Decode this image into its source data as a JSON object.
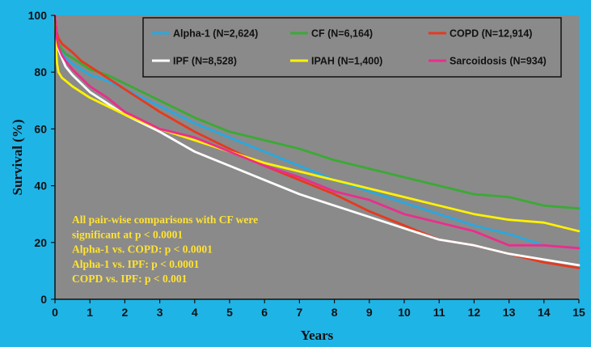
{
  "chart_data": {
    "type": "line",
    "title": "",
    "xlabel": "Years",
    "ylabel": "Survival (%)",
    "xlim": [
      0,
      15
    ],
    "ylim": [
      0,
      100
    ],
    "xticks": [
      0,
      1,
      2,
      3,
      4,
      5,
      6,
      7,
      8,
      9,
      10,
      11,
      12,
      13,
      14,
      15
    ],
    "yticks": [
      0,
      20,
      40,
      60,
      80,
      100
    ],
    "grid": false,
    "legend_position": "top",
    "background_color": "#1fb4e6",
    "plot_background_color": "#8a8a8a",
    "series": [
      {
        "name": "Alpha-1 (N=2,624)",
        "color": "#27a9e1",
        "points": [
          [
            0,
            100
          ],
          [
            0.05,
            92
          ],
          [
            0.1,
            89
          ],
          [
            0.2,
            87
          ],
          [
            0.3,
            85
          ],
          [
            0.5,
            83
          ],
          [
            0.75,
            81
          ],
          [
            1,
            79
          ],
          [
            1.5,
            77
          ],
          [
            2,
            74
          ],
          [
            3,
            68
          ],
          [
            4,
            62
          ],
          [
            5,
            57
          ],
          [
            6,
            52
          ],
          [
            7,
            47
          ],
          [
            8,
            42
          ],
          [
            9,
            38
          ],
          [
            10,
            34
          ],
          [
            11,
            30
          ],
          [
            12,
            26
          ],
          [
            13,
            23
          ],
          [
            14,
            19
          ],
          [
            15,
            18
          ]
        ]
      },
      {
        "name": "CF (N=6,164)",
        "color": "#3aaa35",
        "points": [
          [
            0,
            100
          ],
          [
            0.05,
            93
          ],
          [
            0.1,
            90
          ],
          [
            0.2,
            88
          ],
          [
            0.3,
            86.5
          ],
          [
            0.5,
            85
          ],
          [
            0.75,
            83
          ],
          [
            1,
            81
          ],
          [
            1.5,
            79
          ],
          [
            2,
            76
          ],
          [
            3,
            70
          ],
          [
            4,
            64
          ],
          [
            5,
            59
          ],
          [
            6,
            56
          ],
          [
            7,
            53
          ],
          [
            8,
            49
          ],
          [
            9,
            46
          ],
          [
            10,
            43
          ],
          [
            11,
            40
          ],
          [
            12,
            37
          ],
          [
            13,
            36
          ],
          [
            14,
            33
          ],
          [
            15,
            32
          ]
        ]
      },
      {
        "name": "COPD (N=12,914)",
        "color": "#e8391d",
        "points": [
          [
            0,
            100
          ],
          [
            0.05,
            94
          ],
          [
            0.1,
            92
          ],
          [
            0.2,
            90
          ],
          [
            0.3,
            89
          ],
          [
            0.5,
            87
          ],
          [
            0.75,
            84
          ],
          [
            1,
            82
          ],
          [
            1.5,
            78
          ],
          [
            2,
            74
          ],
          [
            3,
            66
          ],
          [
            4,
            59
          ],
          [
            5,
            53
          ],
          [
            6,
            47
          ],
          [
            7,
            42
          ],
          [
            8,
            37
          ],
          [
            9,
            31
          ],
          [
            10,
            26
          ],
          [
            11,
            21
          ],
          [
            12,
            19
          ],
          [
            13,
            16
          ],
          [
            14,
            13
          ],
          [
            15,
            11
          ]
        ]
      },
      {
        "name": "IPF (N=8,528)",
        "color": "#ffffff",
        "points": [
          [
            0,
            100
          ],
          [
            0.05,
            91
          ],
          [
            0.1,
            88
          ],
          [
            0.2,
            85
          ],
          [
            0.3,
            82
          ],
          [
            0.5,
            79
          ],
          [
            0.75,
            76
          ],
          [
            1,
            73
          ],
          [
            1.5,
            69
          ],
          [
            2,
            65
          ],
          [
            3,
            59
          ],
          [
            4,
            52
          ],
          [
            5,
            47
          ],
          [
            6,
            42
          ],
          [
            7,
            37
          ],
          [
            8,
            33
          ],
          [
            9,
            29
          ],
          [
            10,
            25
          ],
          [
            11,
            21
          ],
          [
            12,
            19
          ],
          [
            13,
            16
          ],
          [
            14,
            14
          ],
          [
            15,
            12
          ]
        ]
      },
      {
        "name": "IPAH (N=1,400)",
        "color": "#fff200",
        "points": [
          [
            0,
            100
          ],
          [
            0.03,
            88
          ],
          [
            0.06,
            83
          ],
          [
            0.1,
            80
          ],
          [
            0.2,
            78
          ],
          [
            0.3,
            77
          ],
          [
            0.5,
            75
          ],
          [
            0.75,
            73
          ],
          [
            1,
            71
          ],
          [
            1.5,
            68
          ],
          [
            2,
            65
          ],
          [
            3,
            60
          ],
          [
            4,
            56
          ],
          [
            5,
            52
          ],
          [
            6,
            48
          ],
          [
            7,
            45
          ],
          [
            8,
            42
          ],
          [
            9,
            39
          ],
          [
            10,
            36
          ],
          [
            11,
            33
          ],
          [
            12,
            30
          ],
          [
            13,
            28
          ],
          [
            14,
            27
          ],
          [
            15,
            24
          ]
        ]
      },
      {
        "name": "Sarcoidosis (N=934)",
        "color": "#ec2d8c",
        "points": [
          [
            0,
            100
          ],
          [
            0.05,
            92
          ],
          [
            0.1,
            89
          ],
          [
            0.2,
            86
          ],
          [
            0.3,
            84
          ],
          [
            0.5,
            81
          ],
          [
            0.75,
            78
          ],
          [
            1,
            75
          ],
          [
            1.5,
            71
          ],
          [
            2,
            66
          ],
          [
            3,
            60
          ],
          [
            4,
            57
          ],
          [
            5,
            52
          ],
          [
            6,
            47
          ],
          [
            7,
            43
          ],
          [
            8,
            38
          ],
          [
            9,
            35
          ],
          [
            10,
            30
          ],
          [
            11,
            27
          ],
          [
            12,
            24
          ],
          [
            13,
            19
          ],
          [
            14,
            19
          ],
          [
            15,
            18
          ]
        ]
      }
    ],
    "annotations": [
      "All pair-wise comparisons with CF were",
      "significant at p < 0.0001",
      "Alpha-1 vs. COPD: p < 0.0001",
      "Alpha-1 vs. IPF: p < 0.0001",
      "COPD vs. IPF: p < 0.001"
    ]
  }
}
